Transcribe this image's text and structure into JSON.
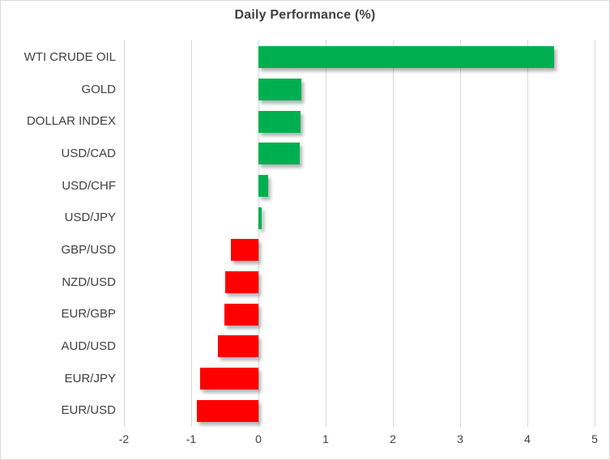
{
  "chart_data": {
    "type": "bar",
    "orientation": "horizontal",
    "title": "Daily Performance (%)",
    "categories": [
      "WTI CRUDE OIL",
      "GOLD",
      "DOLLAR INDEX",
      "USD/CAD",
      "USD/CHF",
      "USD/JPY",
      "GBP/USD",
      "NZD/USD",
      "EUR/GBP",
      "AUD/USD",
      "EUR/JPY",
      "EUR/USD"
    ],
    "values": [
      4.4,
      0.64,
      0.63,
      0.61,
      0.15,
      0.05,
      -0.41,
      -0.49,
      -0.51,
      -0.6,
      -0.87,
      -0.92
    ],
    "xlabel": "",
    "ylabel": "",
    "xlim": [
      -2,
      5
    ],
    "x_ticks": [
      -2,
      -1,
      0,
      1,
      2,
      3,
      4,
      5
    ],
    "grid": true,
    "legend": false,
    "positive_color": "#00B050",
    "negative_color": "#FF0000",
    "gridline_color": "#D9D9D9",
    "border_color": "#D9D9D9",
    "text_color": "#404040"
  }
}
